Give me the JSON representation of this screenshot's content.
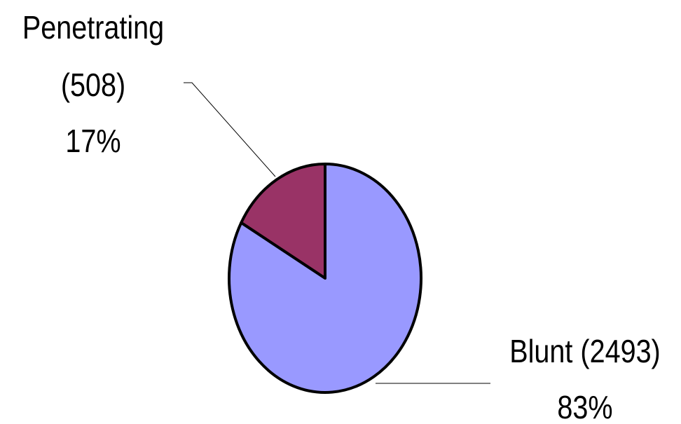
{
  "chart_data": {
    "type": "pie",
    "title": "",
    "slices": [
      {
        "label": "Penetrating",
        "count_label": "(508)",
        "percent_label": "17%",
        "value": 508,
        "color": "#993366"
      },
      {
        "label": "Blunt",
        "count_label": "(2493)",
        "percent_label": "83%",
        "value": 2493,
        "color": "#9999ff"
      }
    ]
  }
}
